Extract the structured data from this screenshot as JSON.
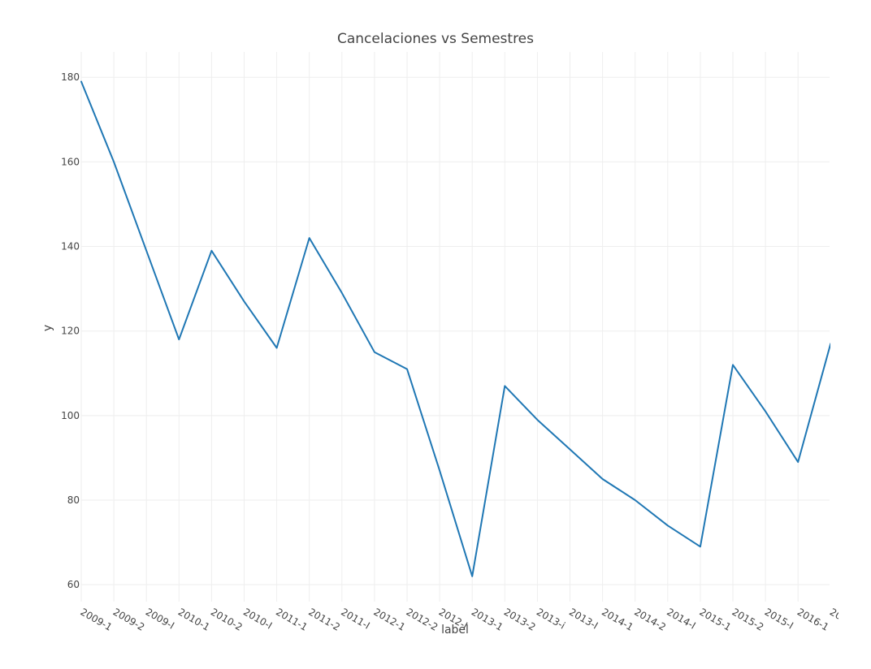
{
  "chart_data": {
    "type": "line",
    "title": "Cancelaciones vs Semestres",
    "xlabel": "label",
    "ylabel": "y",
    "categories": [
      "2009-1",
      "2009-2",
      "2009-I",
      "2010-1",
      "2010-2",
      "2010-I",
      "2011-1",
      "2011-2",
      "2011-I",
      "2012-1",
      "2012-2",
      "2012-I",
      "2013-1",
      "2013-2",
      "2013-i",
      "2013-I",
      "2014-1",
      "2014-2",
      "2014-I",
      "2015-1",
      "2015-2",
      "2015-I",
      "2016-1",
      "20"
    ],
    "series": [
      {
        "values": [
          179,
          160,
          139,
          118,
          139,
          127,
          116,
          142,
          129,
          115,
          111,
          87,
          62,
          107,
          99,
          92,
          85,
          80,
          74,
          69,
          112,
          101,
          89,
          117
        ]
      }
    ],
    "ylim": [
      56,
      186
    ],
    "yticks": [
      60,
      80,
      100,
      120,
      140,
      160,
      180
    ],
    "grid": true,
    "legend": "none",
    "colors": {
      "line": "#1f77b4",
      "grid": "#eeeeee",
      "text": "#444444"
    }
  }
}
